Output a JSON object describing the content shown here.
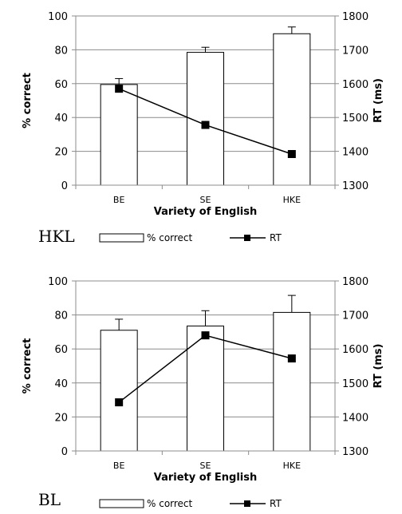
{
  "chart_data": [
    {
      "type": "bar",
      "panel_label": "HKL",
      "categories": [
        "BE",
        "SE",
        "HKE"
      ],
      "xlabel": "Variety of English",
      "ylabel": "% correct",
      "y2label": "RT (ms)",
      "ylim": [
        0,
        100
      ],
      "y2lim": [
        1300,
        1800
      ],
      "yticks": [
        0,
        20,
        40,
        60,
        80,
        100
      ],
      "y2ticks": [
        1300,
        1400,
        1500,
        1600,
        1700,
        1800
      ],
      "grid": true,
      "legend_position": "bottom",
      "series": [
        {
          "name": "% correct",
          "type": "bar",
          "axis": "left",
          "values": [
            59.5,
            78.5,
            89.5
          ],
          "error": [
            3.5,
            3,
            4
          ]
        },
        {
          "name": "RT",
          "type": "line",
          "axis": "right",
          "values": [
            1585,
            1478,
            1392
          ]
        }
      ]
    },
    {
      "type": "bar",
      "panel_label": "BL",
      "categories": [
        "BE",
        "SE",
        "HKE"
      ],
      "xlabel": "Variety of English",
      "ylabel": "% correct",
      "y2label": "RT (ms)",
      "ylim": [
        0,
        100
      ],
      "y2lim": [
        1300,
        1800
      ],
      "yticks": [
        0,
        20,
        40,
        60,
        80,
        100
      ],
      "y2ticks": [
        1300,
        1400,
        1500,
        1600,
        1700,
        1800
      ],
      "grid": true,
      "legend_position": "bottom",
      "series": [
        {
          "name": "% correct",
          "type": "bar",
          "axis": "left",
          "values": [
            71,
            73.5,
            81.5
          ],
          "error": [
            6.5,
            9,
            10
          ]
        },
        {
          "name": "RT",
          "type": "line",
          "axis": "right",
          "values": [
            1443,
            1640,
            1572
          ]
        }
      ]
    }
  ]
}
